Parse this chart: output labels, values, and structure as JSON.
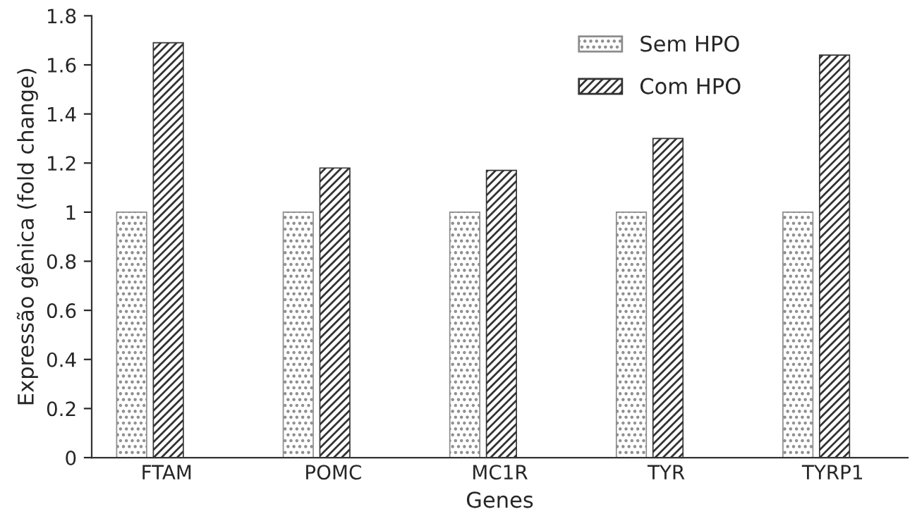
{
  "chart_data": {
    "type": "bar",
    "xlabel": "Genes",
    "ylabel": "Expressão gênica (fold change)",
    "categories": [
      "FTAM",
      "POMC",
      "MC1R",
      "TYR",
      "TYRP1"
    ],
    "series": [
      {
        "name": "Sem HPO",
        "color": "#8c8c8c",
        "values": [
          1,
          1,
          1,
          1,
          1
        ]
      },
      {
        "name": "Com HPO",
        "color": "#333333",
        "values": [
          1.69,
          1.18,
          1.17,
          1.3,
          1.64
        ]
      }
    ],
    "ylim": [
      0,
      1.8
    ],
    "yticks": [
      0,
      0.2,
      0.4,
      0.6,
      0.8,
      1,
      1.2,
      1.4,
      1.6,
      1.8
    ],
    "grid": false,
    "legend": "top right"
  }
}
